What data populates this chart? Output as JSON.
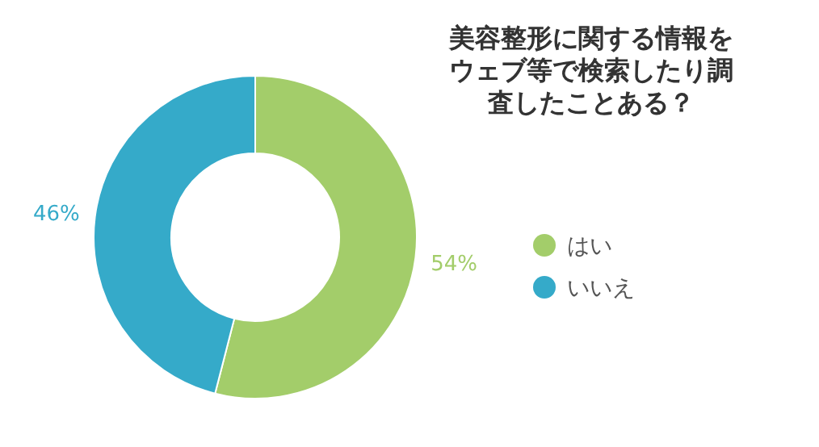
{
  "chart_data": {
    "type": "donut",
    "title": "美容整形に関する情報をウェブ等で検索したり調査したことある？",
    "categories": [
      "はい",
      "いいえ"
    ],
    "values": [
      54,
      46
    ],
    "colors": [
      "#a3cd6a",
      "#35aac9"
    ],
    "value_labels": [
      "54%",
      "46%"
    ],
    "legend": "right"
  }
}
